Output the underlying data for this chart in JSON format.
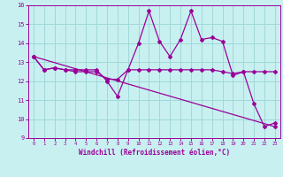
{
  "xlabel": "Windchill (Refroidissement éolien,°C)",
  "xlim": [
    -0.5,
    23.5
  ],
  "ylim": [
    9,
    16
  ],
  "yticks": [
    9,
    10,
    11,
    12,
    13,
    14,
    15,
    16
  ],
  "xticks": [
    0,
    1,
    2,
    3,
    4,
    5,
    6,
    7,
    8,
    9,
    10,
    11,
    12,
    13,
    14,
    15,
    16,
    17,
    18,
    19,
    20,
    21,
    22,
    23
  ],
  "background_color": "#c8f0f0",
  "grid_color": "#a0d8d8",
  "line_color": "#990099",
  "series1": {
    "x": [
      0,
      1,
      2,
      3,
      4,
      5,
      6,
      7,
      8,
      9,
      10,
      11,
      12,
      13,
      14,
      15,
      16,
      17,
      18,
      19,
      20,
      21,
      22,
      23
    ],
    "y": [
      13.3,
      12.6,
      12.7,
      12.6,
      12.6,
      12.6,
      12.6,
      12.0,
      11.2,
      12.6,
      14.0,
      15.7,
      14.1,
      13.3,
      14.2,
      15.7,
      14.2,
      14.3,
      14.1,
      12.3,
      12.5,
      10.8,
      9.6,
      9.8
    ]
  },
  "series2": {
    "x": [
      0,
      1,
      2,
      3,
      4,
      5,
      6,
      7,
      8,
      9,
      10,
      11,
      12,
      13,
      14,
      15,
      16,
      17,
      18,
      19,
      20,
      21,
      22,
      23
    ],
    "y": [
      13.3,
      12.6,
      12.7,
      12.6,
      12.5,
      12.5,
      12.5,
      12.1,
      12.1,
      12.6,
      12.6,
      12.6,
      12.6,
      12.6,
      12.6,
      12.6,
      12.6,
      12.6,
      12.5,
      12.4,
      12.5,
      12.5,
      12.5,
      12.5
    ]
  },
  "series3": {
    "x": [
      0,
      23
    ],
    "y": [
      13.3,
      9.6
    ]
  }
}
